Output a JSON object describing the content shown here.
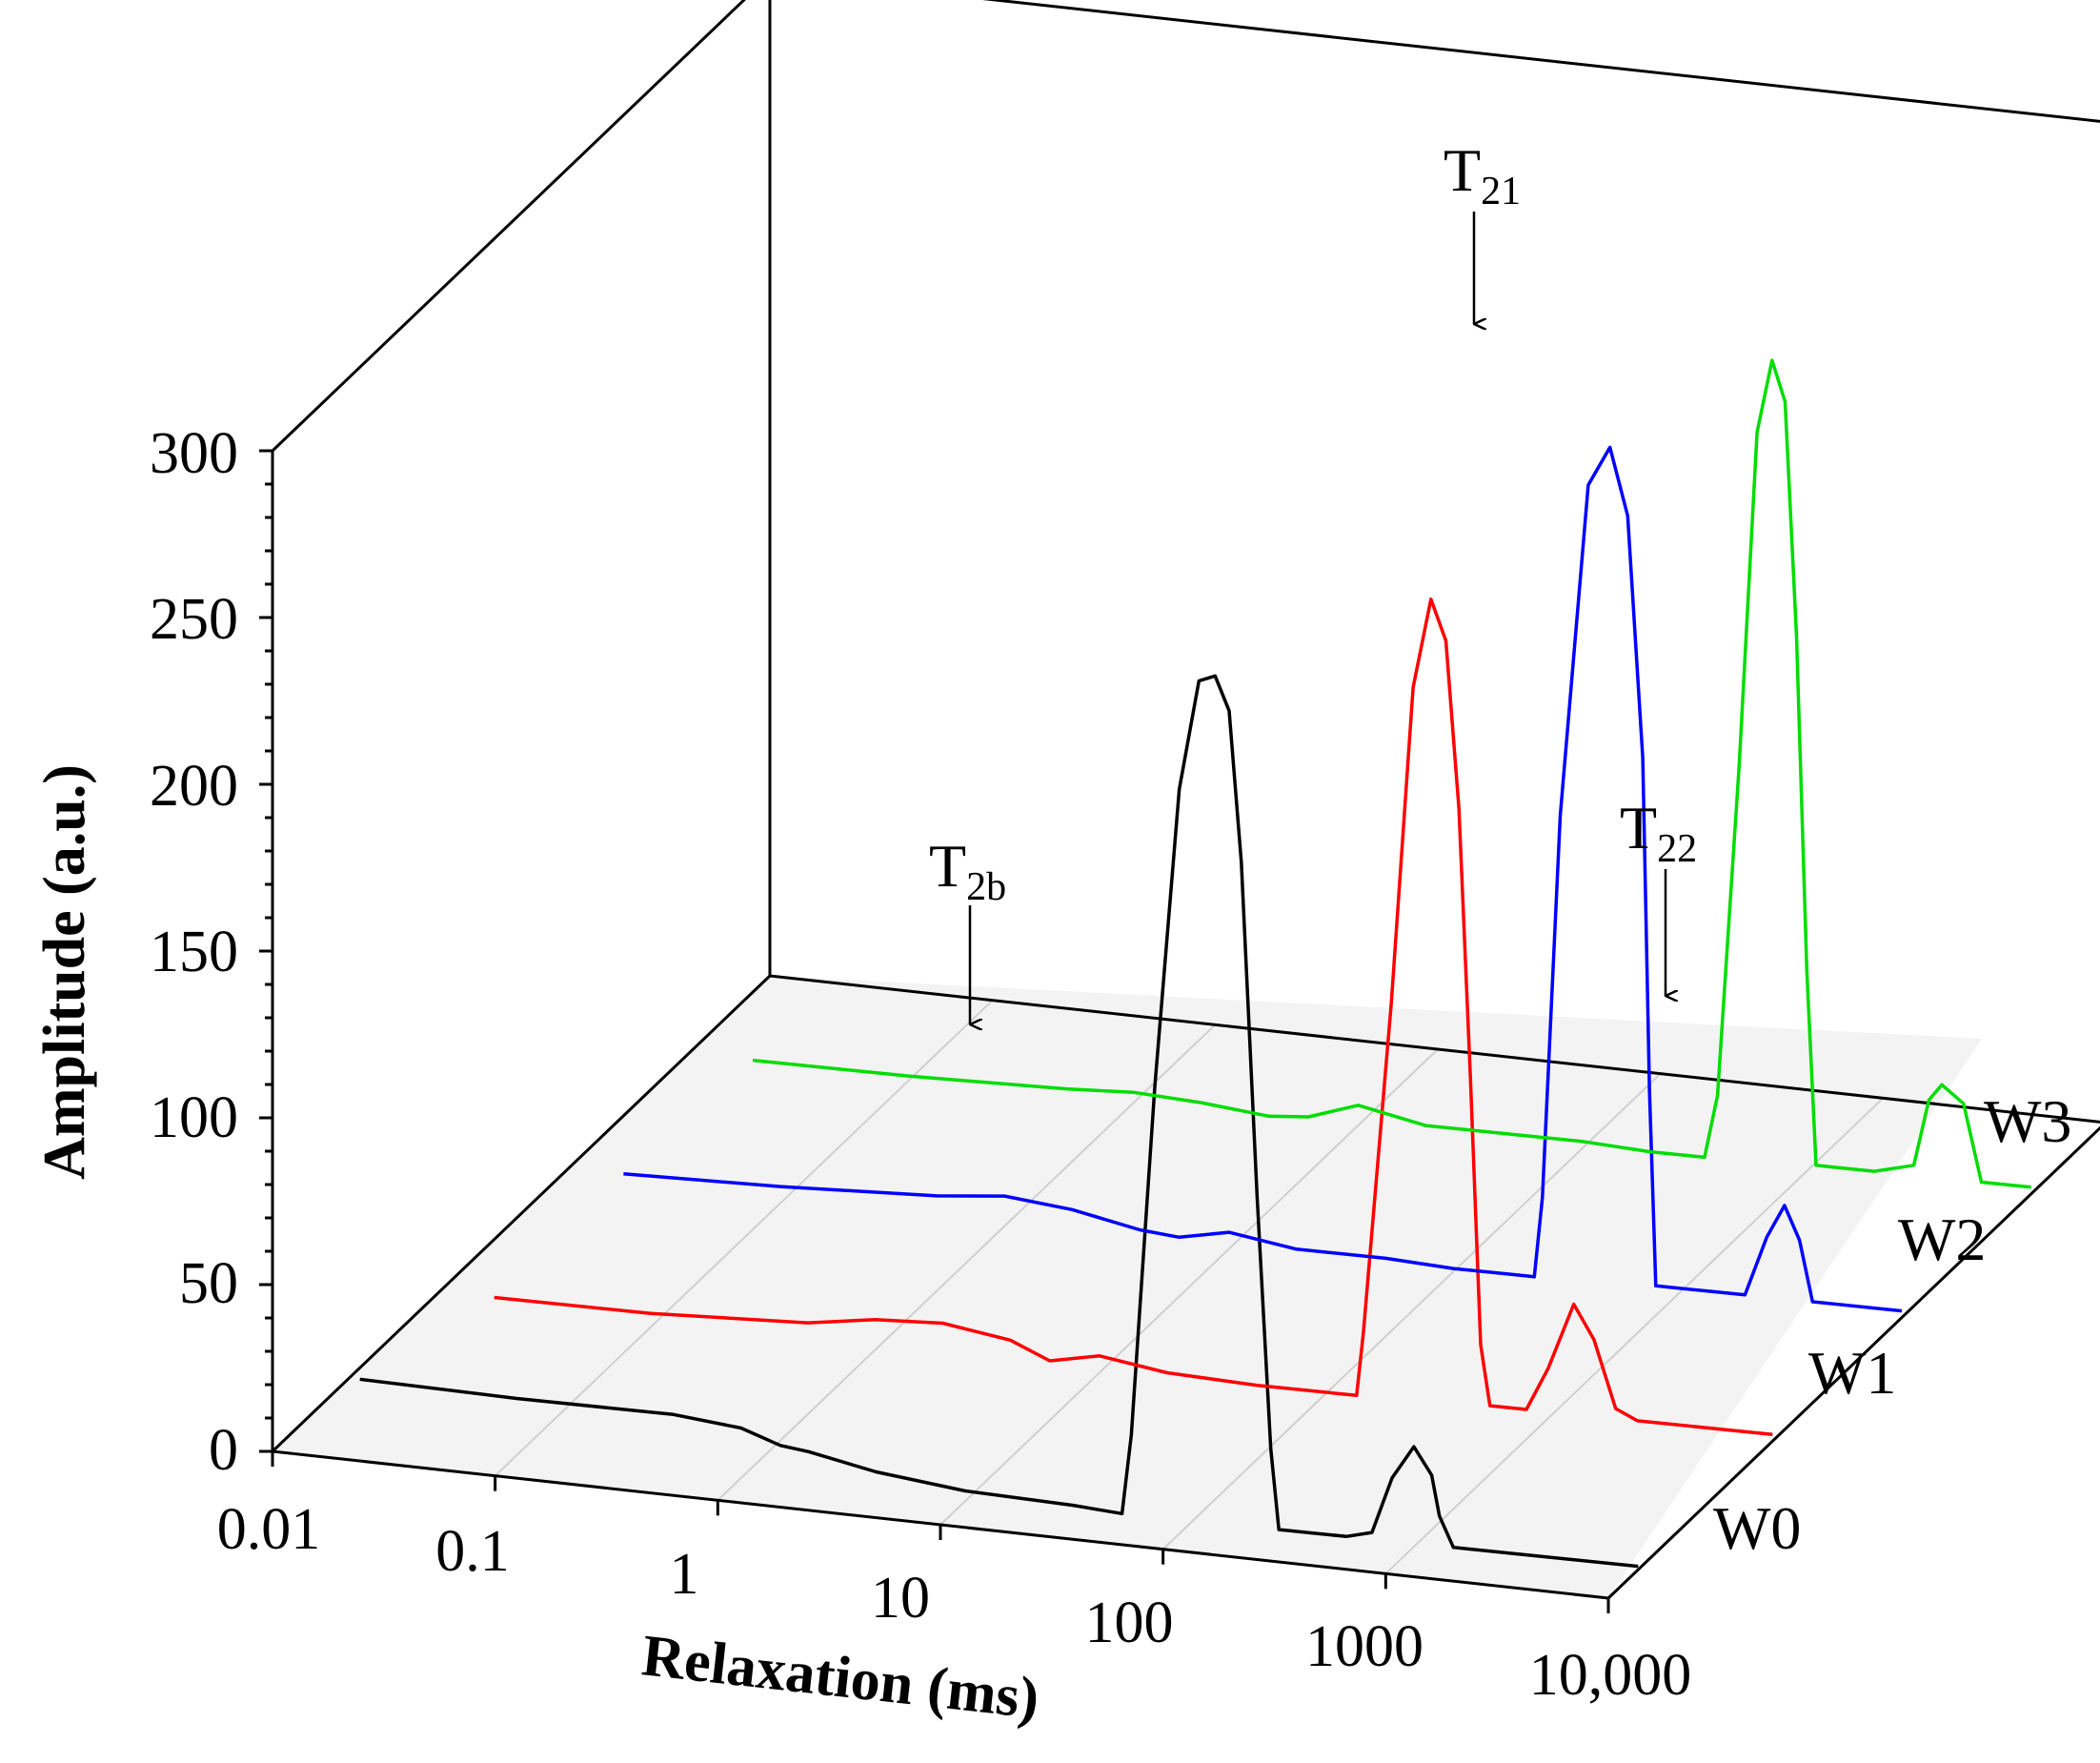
{
  "chart_data": {
    "type": "line",
    "style": "3d-waterfall",
    "title": "",
    "xlabel": "Relaxation (ms)",
    "ylabel": "Amplitude (a.u.)",
    "x_scale": "log",
    "xlim": [
      0.01,
      10000
    ],
    "ylim": [
      0,
      300
    ],
    "x_tick_labels": [
      "0.01",
      "0.1",
      "1",
      "10",
      "100",
      "1000",
      "10,000"
    ],
    "x_tick_values": [
      0.01,
      0.1,
      1,
      10,
      100,
      1000,
      10000
    ],
    "y_tick_labels": [
      "0",
      "50",
      "100",
      "150",
      "200",
      "250",
      "300"
    ],
    "y_tick_values": [
      0,
      50,
      100,
      150,
      200,
      250,
      300
    ],
    "series": [
      {
        "name": "W0",
        "color": "#000000",
        "x": [
          0.02,
          0.1,
          0.5,
          1,
          1.5,
          2,
          4,
          10,
          30,
          50,
          55,
          70,
          90,
          110,
          130,
          150,
          170,
          200,
          230,
          250,
          280,
          350,
          400,
          500,
          650,
          800,
          1000,
          1200,
          1300,
          1500,
          2500,
          10000
        ],
        "y": [
          18,
          17,
          17,
          15,
          11,
          10,
          6,
          3,
          2,
          1,
          25,
          130,
          220,
          253,
          255,
          245,
          200,
          100,
          25,
          1,
          1,
          1,
          1,
          1,
          3,
          20,
          30,
          22,
          10,
          1,
          1,
          1
        ]
      },
      {
        "name": "W1",
        "color": "#ff0000",
        "x": [
          0.02,
          0.1,
          0.5,
          1,
          2,
          4,
          6,
          10,
          20,
          50,
          100,
          140,
          150,
          200,
          250,
          300,
          350,
          400,
          450,
          500,
          550,
          600,
          700,
          800,
          1000,
          1300,
          1600,
          2000,
          2500,
          10000
        ],
        "y": [
          4,
          4,
          6,
          9,
          10,
          7,
          2,
          5,
          2,
          1,
          1,
          1,
          20,
          120,
          215,
          242,
          230,
          180,
          100,
          20,
          2,
          2,
          2,
          2,
          15,
          35,
          25,
          5,
          2,
          2
        ]
      },
      {
        "name": "W2",
        "color": "#0000ff",
        "x": [
          0.02,
          0.1,
          0.5,
          1,
          2,
          4,
          6,
          10,
          20,
          50,
          100,
          150,
          200,
          230,
          250,
          300,
          400,
          500,
          600,
          700,
          750,
          800,
          1000,
          1500,
          2000,
          2500,
          3000,
          3500,
          4000,
          10000
        ],
        "y": [
          4,
          5,
          7,
          9,
          7,
          3,
          2,
          5,
          2,
          2,
          1,
          1,
          1,
          1,
          25,
          140,
          240,
          252,
          232,
          160,
          60,
          2,
          2,
          2,
          2,
          20,
          30,
          20,
          2,
          2
        ]
      },
      {
        "name": "W3",
        "color": "#00dd00",
        "x": [
          0.02,
          0.1,
          0.5,
          1,
          2,
          4,
          6,
          10,
          20,
          50,
          100,
          200,
          300,
          350,
          400,
          500,
          600,
          700,
          800,
          900,
          1000,
          1100,
          1300,
          2000,
          3000,
          3500,
          4000,
          5000,
          6000,
          10000
        ],
        "y": [
          1,
          1,
          2,
          3,
          2,
          0,
          1,
          6,
          2,
          2,
          2,
          1,
          1,
          1,
          20,
          120,
          220,
          242,
          230,
          160,
          60,
          2,
          2,
          2,
          5,
          25,
          30,
          25,
          2,
          2
        ]
      }
    ],
    "annotations": [
      {
        "main": "T",
        "sub": "2b",
        "series": "W3",
        "x": 3
      },
      {
        "main": "T",
        "sub": "21",
        "series": "W3",
        "x": 700
      },
      {
        "main": "T",
        "sub": "22",
        "series": "W3",
        "x": 4000
      }
    ]
  }
}
